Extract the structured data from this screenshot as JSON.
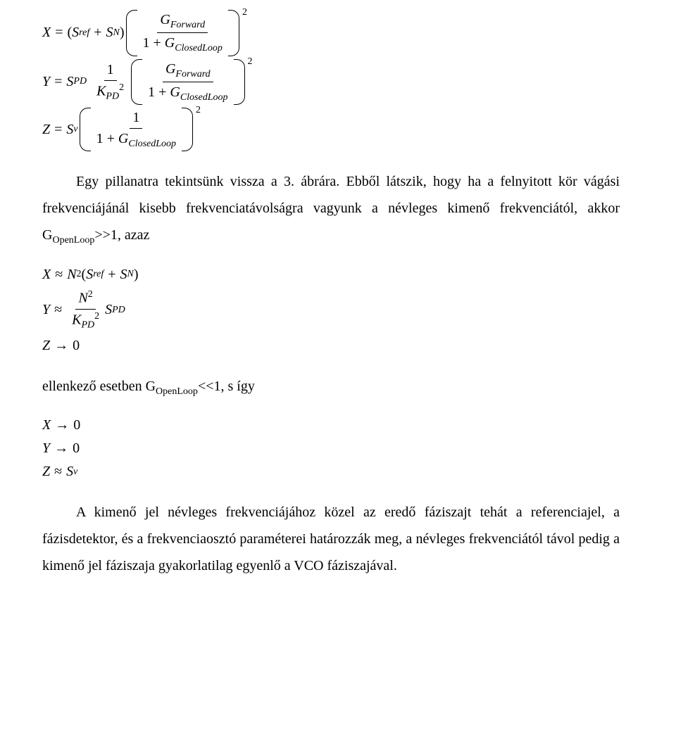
{
  "colors": {
    "background": "#ffffff",
    "text": "#000000",
    "rule": "#000000"
  },
  "typography": {
    "body_family": "Times New Roman",
    "body_size_pt": 15,
    "math_style": "italic",
    "line_height": 1.9
  },
  "eq1": {
    "X": "X",
    "eq": "=",
    "lparen": "(",
    "Sref": "S",
    "Sref_sub": "ref",
    "plus": "+",
    "SN": "S",
    "SN_sub": "N",
    "rparen": ")",
    "frac_num": {
      "G": "G",
      "G_sub": "Forward"
    },
    "frac_den": {
      "one": "1",
      "plus": "+",
      "G": "G",
      "G_sub": "ClosedLoop"
    },
    "outer_exp": "2"
  },
  "eq2": {
    "Y": "Y",
    "eq": "=",
    "SPD": "S",
    "SPD_sub": "PD",
    "coeff_num": "1",
    "coeff_den": {
      "K": "K",
      "K_sub": "PD",
      "K_sup": "2"
    },
    "frac_num": {
      "G": "G",
      "G_sub": "Forward"
    },
    "frac_den": {
      "one": "1",
      "plus": "+",
      "G": "G",
      "G_sub": "ClosedLoop"
    },
    "outer_exp": "2"
  },
  "eq3": {
    "Z": "Z",
    "eq": "=",
    "Sv": "S",
    "Sv_sub": "v",
    "frac_num": "1",
    "frac_den": {
      "one": "1",
      "plus": "+",
      "G": "G",
      "G_sub": "ClosedLoop"
    },
    "outer_exp": "2"
  },
  "para1_a": "Egy pillanatra tekintsünk vissza a 3. ábrára. Ebből látszik, hogy ha a felnyitott kör vágási frekvenciájánál kisebb frekvenciatávolságra vagyunk a névleges kimenő frekvenciától, akkor G",
  "para1_sub1": "OpenLoop",
  "para1_b": ">>1, azaz",
  "eq4": {
    "line1": {
      "X": "X",
      "approx": "≈",
      "N": "N",
      "N_sup": "2",
      "lparen": "(",
      "Sref": "S",
      "Sref_sub": "ref",
      "plus": "+",
      "SN": "S",
      "SN_sub": "N",
      "rparen": ")"
    },
    "line2": {
      "Y": "Y",
      "approx": "≈",
      "num_N": "N",
      "num_N_sup": "2",
      "den_K": "K",
      "den_K_sub": "PD",
      "den_K_sup": "2",
      "S": "S",
      "S_sub": "PD"
    },
    "line3": {
      "Z": "Z",
      "arrow": "→",
      "zero": "0"
    }
  },
  "para2_a": "ellenkező esetben G",
  "para2_sub1": "OpenLoop",
  "para2_b": "<<1, s így",
  "eq5": {
    "line1": {
      "X": "X",
      "arrow": "→",
      "zero": "0"
    },
    "line2": {
      "Y": "Y",
      "arrow": "→",
      "zero": "0"
    },
    "line3": {
      "Z": "Z",
      "approx": "≈",
      "S": "S",
      "S_sub": "v"
    }
  },
  "para3": "A kimenő jel névleges frekvenciájához közel az eredő fáziszajt tehát a referenciajel, a fázisdetektor, és a frekvenciaosztó paraméterei határozzák meg, a névleges frekvenciától távol pedig a kimenő jel fáziszaja gyakorlatilag egyenlő a VCO fáziszajával."
}
